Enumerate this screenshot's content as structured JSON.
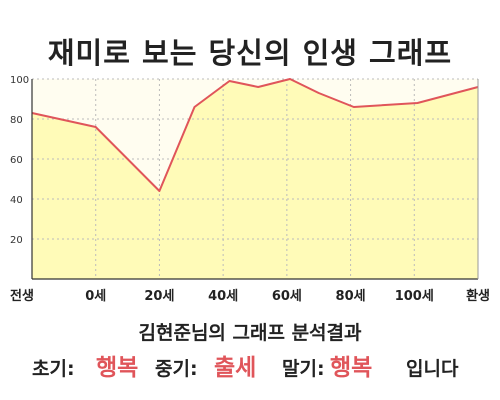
{
  "title": "재미로 보는 당신의 인생 그래프",
  "chart_data": {
    "type": "area",
    "x_labels": [
      "전생",
      "0세",
      "20세",
      "40세",
      "60세",
      "80세",
      "100세",
      "환생"
    ],
    "y_ticks": [
      "20",
      "40",
      "60",
      "80",
      "100"
    ],
    "ylim": [
      0,
      100
    ],
    "points": [
      {
        "x": 0,
        "y": 83
      },
      {
        "x": 1,
        "y": 76
      },
      {
        "x": 2,
        "y": 44
      },
      {
        "x": 2.55,
        "y": 86
      },
      {
        "x": 3.1,
        "y": 99
      },
      {
        "x": 3.55,
        "y": 96
      },
      {
        "x": 4.05,
        "y": 100
      },
      {
        "x": 4.5,
        "y": 93
      },
      {
        "x": 5.05,
        "y": 86
      },
      {
        "x": 6.05,
        "y": 88
      },
      {
        "x": 7,
        "y": 96
      }
    ],
    "line_color": "#e0555a",
    "fill_color": "#fffbb8",
    "background_color": "#fffdf0",
    "grid": true
  },
  "summary": "김현준님의 그래프 분석결과",
  "result": {
    "early_label": "초기:",
    "early_value": "행복",
    "mid_label": "중기:",
    "mid_value": "출세",
    "late_label": "말기:",
    "late_value": "행복",
    "ending": "입니다"
  }
}
